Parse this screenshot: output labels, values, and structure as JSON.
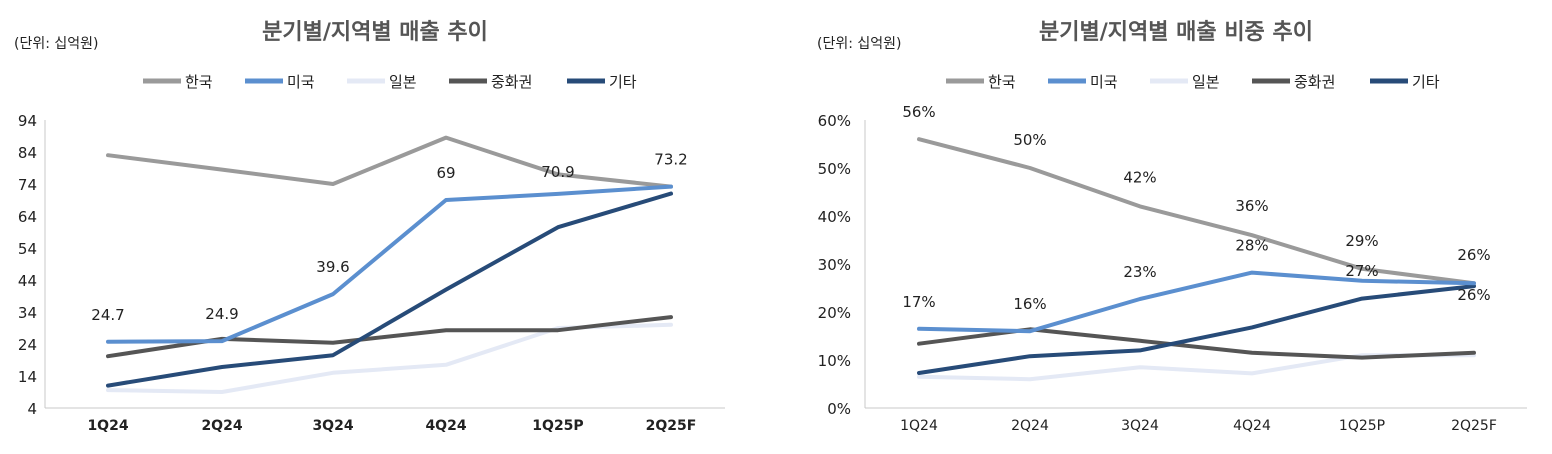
{
  "chart_data": [
    {
      "type": "line",
      "title": "분기별/지역별 매출 추이",
      "unit": "(단위: 십억원)",
      "categories": [
        "1Q24",
        "2Q24",
        "3Q24",
        "4Q24",
        "1Q25P",
        "2Q25F"
      ],
      "ylim": [
        4,
        94
      ],
      "yticks": [
        4,
        14,
        24,
        34,
        44,
        54,
        64,
        74,
        84,
        94
      ],
      "grid": false,
      "legend_position": "top",
      "series": [
        {
          "name": "한국",
          "color": "#9a9a9a",
          "values": [
            83,
            78.5,
            74,
            88.5,
            77,
            73.2
          ]
        },
        {
          "name": "미국",
          "color": "#5b8fcf",
          "values": [
            24.7,
            24.9,
            39.6,
            69,
            70.9,
            73.2
          ]
        },
        {
          "name": "일본",
          "color": "#e4e9f5",
          "values": [
            9.6,
            9.0,
            15.0,
            17.5,
            29.0,
            30.0
          ]
        },
        {
          "name": "중화권",
          "color": "#555555",
          "values": [
            20.2,
            25.6,
            24.4,
            28.3,
            28.3,
            32.4
          ]
        },
        {
          "name": "기타",
          "color": "#274b78",
          "values": [
            11.0,
            16.8,
            20.5,
            41.0,
            60.5,
            71.0
          ]
        }
      ],
      "data_labels": [
        {
          "series": "미국",
          "index": 0,
          "text": "24.7"
        },
        {
          "series": "미국",
          "index": 1,
          "text": "24.9"
        },
        {
          "series": "미국",
          "index": 2,
          "text": "39.6"
        },
        {
          "series": "미국",
          "index": 3,
          "text": "69"
        },
        {
          "series": "미국",
          "index": 4,
          "text": "70.9"
        },
        {
          "series": "미국",
          "index": 5,
          "text": "73.2"
        }
      ]
    },
    {
      "type": "line",
      "title": "분기별/지역별 매출 비중 추이",
      "unit": "(단위: 십억원)",
      "categories": [
        "1Q24",
        "2Q24",
        "3Q24",
        "4Q24",
        "1Q25P",
        "2Q25F"
      ],
      "ylim": [
        0,
        60
      ],
      "yticks": [
        0,
        10,
        20,
        30,
        40,
        50,
        60
      ],
      "ytick_suffix": "%",
      "grid": false,
      "legend_position": "top",
      "series": [
        {
          "name": "한국",
          "color": "#9a9a9a",
          "values": [
            56,
            50,
            42,
            36,
            29,
            26
          ]
        },
        {
          "name": "미국",
          "color": "#5b8fcf",
          "values": [
            16.5,
            16,
            22.7,
            28.2,
            26.5,
            26
          ]
        },
        {
          "name": "일본",
          "color": "#e4e9f5",
          "values": [
            6.5,
            6.0,
            8.5,
            7.2,
            11.0,
            11.0
          ]
        },
        {
          "name": "중화권",
          "color": "#555555",
          "values": [
            13.4,
            16.4,
            14.0,
            11.5,
            10.5,
            11.5
          ]
        },
        {
          "name": "기타",
          "color": "#274b78",
          "values": [
            7.3,
            10.8,
            12.0,
            16.8,
            22.8,
            25.4
          ]
        }
      ],
      "data_labels": [
        {
          "series": "한국",
          "index": 0,
          "text": "56%"
        },
        {
          "series": "한국",
          "index": 1,
          "text": "50%"
        },
        {
          "series": "한국",
          "index": 2,
          "text": "42%"
        },
        {
          "series": "한국",
          "index": 3,
          "text": "36%"
        },
        {
          "series": "한국",
          "index": 4,
          "text": "29%"
        },
        {
          "series": "한국",
          "index": 5,
          "text": "26%"
        },
        {
          "series": "미국",
          "index": 0,
          "text": "17%"
        },
        {
          "series": "미국",
          "index": 1,
          "text": "16%"
        },
        {
          "series": "미국",
          "index": 2,
          "text": "23%"
        },
        {
          "series": "미국",
          "index": 3,
          "text": "28%"
        },
        {
          "series": "미국",
          "index": 4,
          "text": "27%"
        },
        {
          "series": "미국",
          "index": 5,
          "text": "26%"
        }
      ]
    }
  ]
}
